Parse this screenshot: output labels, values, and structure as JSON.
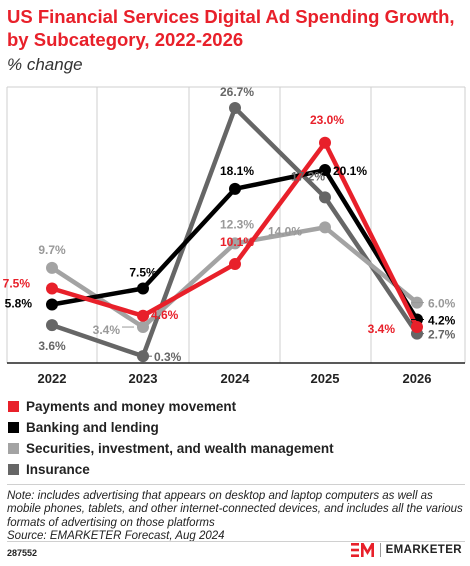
{
  "header": {
    "title": "US Financial Services Digital Ad Spending Growth, by Subcategory, 2022-2026",
    "subtitle": "% change"
  },
  "chart_data": {
    "type": "line",
    "x": [
      "2022",
      "2023",
      "2024",
      "2025",
      "2026"
    ],
    "ylim": [
      0,
      30
    ],
    "grid": "vertical",
    "legend_position": "bottom",
    "series": [
      {
        "name": "Payments and money movement",
        "color": "#e8202a",
        "values": [
          7.5,
          4.6,
          10.1,
          23.0,
          3.4
        ],
        "labels": [
          "7.5%",
          "4.6%",
          "10.1%",
          "23.0%",
          "3.4%"
        ]
      },
      {
        "name": "Banking and lending",
        "color": "#000000",
        "values": [
          5.8,
          7.5,
          18.1,
          20.1,
          4.2
        ],
        "labels": [
          "5.8%",
          "7.5%",
          "18.1%",
          "20.1%",
          "4.2%"
        ]
      },
      {
        "name": "Securities, investment, and wealth management",
        "color": "#a3a3a3",
        "values": [
          9.7,
          3.4,
          12.3,
          14.0,
          6.0
        ],
        "labels": [
          "9.7%",
          "3.4%",
          "12.3%",
          "14.0%",
          "6.0%"
        ]
      },
      {
        "name": "Insurance",
        "color": "#666666",
        "values": [
          3.6,
          0.3,
          26.7,
          17.2,
          2.7
        ],
        "labels": [
          "3.6%",
          "0.3%",
          "26.7%",
          "17.2%",
          "2.7%"
        ]
      }
    ]
  },
  "footer": {
    "note": "Note: includes advertising that appears on desktop and laptop computers as well as mobile phones, tablets, and other internet-connected devices, and includes all the various formats of advertising on those platforms",
    "source": "Source: EMARKETER Forecast, Aug 2024",
    "chart_id": "287552",
    "brand": "EMARKETER",
    "brand_color": "#e8202a"
  }
}
